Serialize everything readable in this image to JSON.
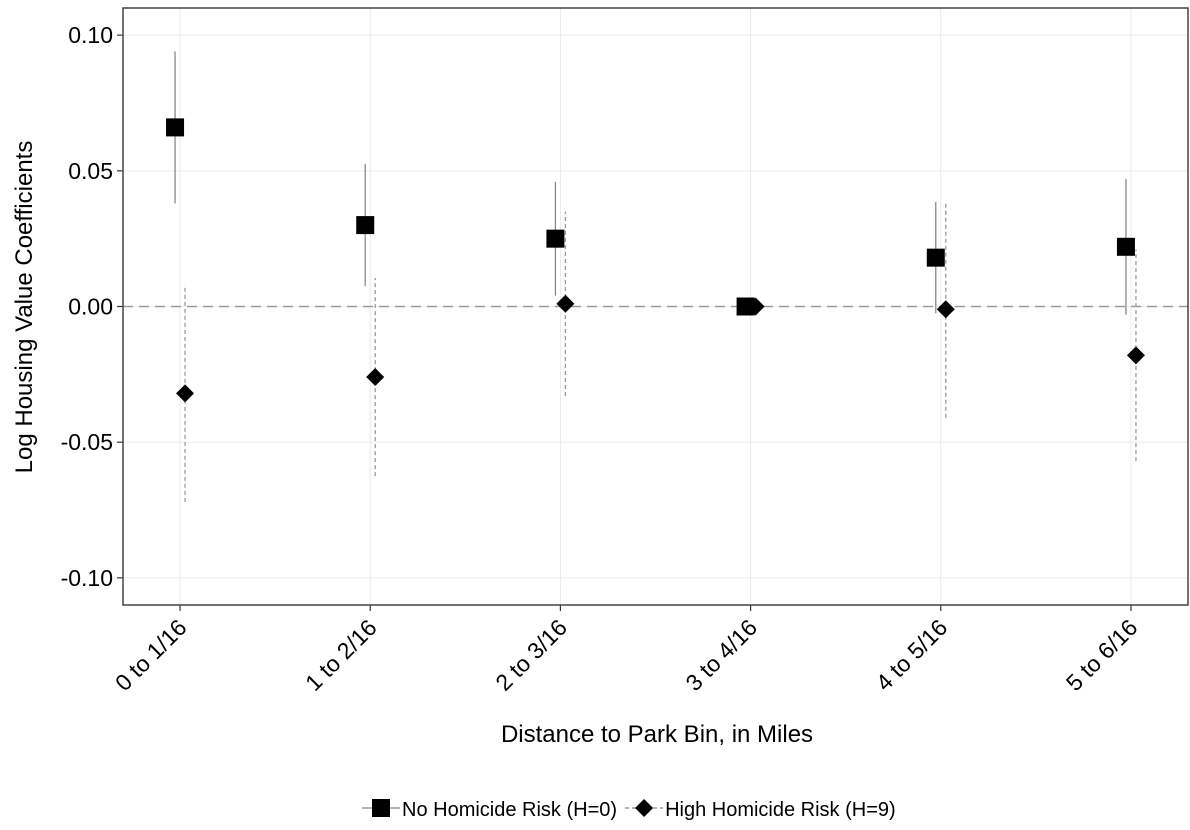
{
  "chart_data": {
    "type": "errorbar",
    "x_label": "Distance to Park Bin, in Miles",
    "y_label": "Log Housing Value Coefficients",
    "categories": [
      "0 to 1/16",
      "1 to 2/16",
      "2 to 3/16",
      "3 to 4/16",
      "4 to 5/16",
      "5 to 6/16"
    ],
    "series": [
      {
        "name": "No Homicide Risk (H=0)",
        "color": "#000000",
        "marker": "square",
        "line": "solid",
        "values": [
          0.066,
          0.03,
          0.025,
          0.0,
          0.018,
          0.022
        ],
        "errors": [
          0.028,
          0.0225,
          0.021,
          0.0,
          0.0205,
          0.025
        ]
      },
      {
        "name": "High Homicide Risk (H=9)",
        "color": "#000000",
        "marker": "diamond",
        "line": "dashed",
        "values": [
          -0.032,
          -0.026,
          0.001,
          0.0,
          -0.001,
          -0.018
        ],
        "errors": [
          0.04,
          0.0365,
          0.034,
          0.0,
          0.04,
          0.039
        ]
      }
    ],
    "ylim": [
      -0.11,
      0.11
    ],
    "yticks": [
      {
        "value": 0.1,
        "label": "0.10"
      },
      {
        "value": 0.05,
        "label": "0.05"
      },
      {
        "value": 0,
        "label": "0.00"
      },
      {
        "value": -0.05,
        "label": "-0.05"
      },
      {
        "value": -0.1,
        "label": "-0.10"
      }
    ],
    "hline": 0,
    "grid": true,
    "legend": "bottom"
  }
}
